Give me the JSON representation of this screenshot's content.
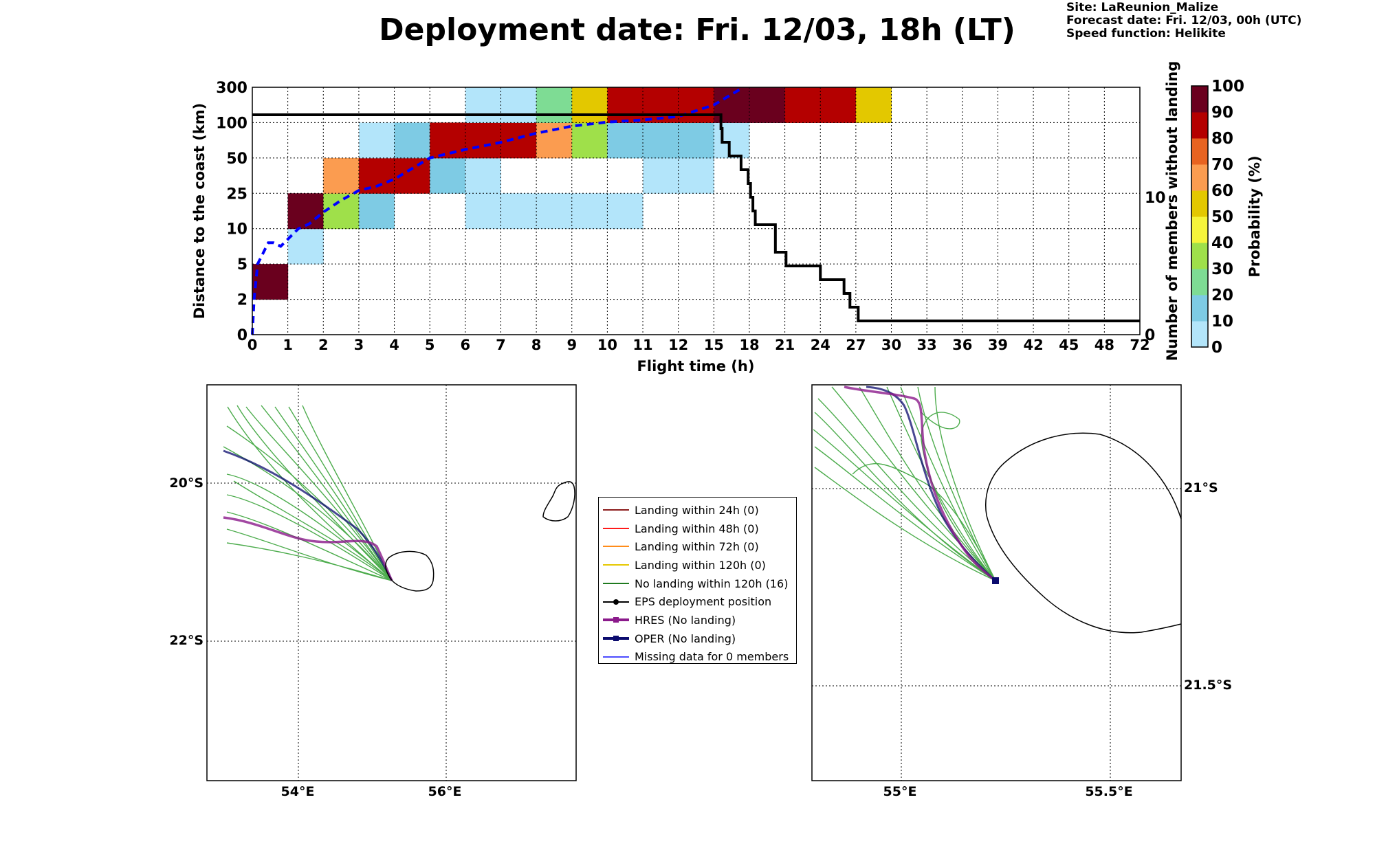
{
  "title": "Deployment date: Fri. 12/03, 18h (LT)",
  "info": {
    "site": "Site: LaReunion_Malize",
    "forecast": "Forecast date: Fri. 12/03, 00h (UTC)",
    "speed": "Speed function: Helikite"
  },
  "chart_data": [
    {
      "type": "heatmap",
      "xlabel": "Flight time (h)",
      "ylabel": "Distance to the coast (km)",
      "y2label": "Number of members without landing",
      "x_ticks": [
        "0",
        "1",
        "2",
        "3",
        "4",
        "5",
        "6",
        "7",
        "8",
        "9",
        "10",
        "11",
        "12",
        "15",
        "18",
        "21",
        "24",
        "27",
        "30",
        "33",
        "36",
        "39",
        "42",
        "45",
        "48",
        "72"
      ],
      "y_ticks": [
        "0",
        "2",
        "5",
        "10",
        "25",
        "50",
        "100",
        "300"
      ],
      "y2_ticks": [
        "0",
        "10"
      ],
      "y2lim": [
        0,
        18
      ],
      "colorbar": {
        "label": "Probability (%)",
        "ticks": [
          "0",
          "10",
          "20",
          "30",
          "40",
          "50",
          "60",
          "70",
          "80",
          "90",
          "100"
        ],
        "colors": [
          "#b3e5fa",
          "#7ecbe4",
          "#7edc94",
          "#9fe04a",
          "#f6f43a",
          "#e3c800",
          "#fb9c50",
          "#e86320",
          "#b40000",
          "#6a001e"
        ]
      },
      "cells": [
        {
          "x": "0-1",
          "y": "2-5",
          "prob_pct": 95
        },
        {
          "x": "1-2",
          "y": "5-10",
          "prob_pct": 5
        },
        {
          "x": "1-2",
          "y": "10-25",
          "prob_pct": 95
        },
        {
          "x": "2-3",
          "y": "10-25",
          "prob_pct": 35
        },
        {
          "x": "2-3",
          "y": "25-50",
          "prob_pct": 65
        },
        {
          "x": "3-4",
          "y": "10-25",
          "prob_pct": 15
        },
        {
          "x": "3-4",
          "y": "25-50",
          "prob_pct": 85
        },
        {
          "x": "3-4",
          "y": "50-100",
          "prob_pct": 5
        },
        {
          "x": "4-5",
          "y": "25-50",
          "prob_pct": 85
        },
        {
          "x": "4-5",
          "y": "50-100",
          "prob_pct": 15
        },
        {
          "x": "5-6",
          "y": "25-50",
          "prob_pct": 15
        },
        {
          "x": "5-6",
          "y": "50-100",
          "prob_pct": 85
        },
        {
          "x": "6-7",
          "y": "10-25",
          "prob_pct": 5
        },
        {
          "x": "6-7",
          "y": "25-50",
          "prob_pct": 5
        },
        {
          "x": "6-7",
          "y": "50-100",
          "prob_pct": 85
        },
        {
          "x": "6-7",
          "y": "100-300",
          "prob_pct": 5
        },
        {
          "x": "7-8",
          "y": "10-25",
          "prob_pct": 5
        },
        {
          "x": "7-8",
          "y": "50-100",
          "prob_pct": 85
        },
        {
          "x": "7-8",
          "y": "100-300",
          "prob_pct": 5
        },
        {
          "x": "8-9",
          "y": "10-25",
          "prob_pct": 5
        },
        {
          "x": "8-9",
          "y": "50-100",
          "prob_pct": 65
        },
        {
          "x": "8-9",
          "y": "100-300",
          "prob_pct": 25
        },
        {
          "x": "9-10",
          "y": "10-25",
          "prob_pct": 5
        },
        {
          "x": "9-10",
          "y": "50-100",
          "prob_pct": 35
        },
        {
          "x": "9-10",
          "y": "100-300",
          "prob_pct": 55
        },
        {
          "x": "10-11",
          "y": "10-25",
          "prob_pct": 5
        },
        {
          "x": "10-11",
          "y": "50-100",
          "prob_pct": 15
        },
        {
          "x": "10-11",
          "y": "100-300",
          "prob_pct": 85
        },
        {
          "x": "11-12",
          "y": "25-50",
          "prob_pct": 5
        },
        {
          "x": "11-12",
          "y": "50-100",
          "prob_pct": 15
        },
        {
          "x": "11-12",
          "y": "100-300",
          "prob_pct": 85
        },
        {
          "x": "12-15",
          "y": "25-50",
          "prob_pct": 5
        },
        {
          "x": "12-15",
          "y": "50-100",
          "prob_pct": 15
        },
        {
          "x": "12-15",
          "y": "100-300",
          "prob_pct": 85
        },
        {
          "x": "15-18",
          "y": "50-100",
          "prob_pct": 5
        },
        {
          "x": "15-18",
          "y": "100-300",
          "prob_pct": 95
        },
        {
          "x": "18-21",
          "y": "100-300",
          "prob_pct": 95
        },
        {
          "x": "21-24",
          "y": "100-300",
          "prob_pct": 85
        },
        {
          "x": "24-27",
          "y": "100-300",
          "prob_pct": 85
        },
        {
          "x": "27-30",
          "y": "100-300",
          "prob_pct": 55
        }
      ],
      "series": [
        {
          "type": "line",
          "style": "dashed",
          "color": "#0000ff",
          "axis": "left",
          "x_h": [
            0,
            0.05,
            0.15,
            0.3,
            0.45,
            0.6,
            0.8,
            1,
            1.3,
            1.6,
            2,
            2.5,
            3,
            3.5,
            4,
            5,
            6,
            7,
            8,
            9,
            10,
            11,
            12,
            15,
            17.5
          ],
          "y_km": [
            0,
            2,
            5,
            6.5,
            8,
            8,
            7.5,
            8.5,
            10,
            12,
            17,
            22,
            27,
            30,
            35,
            50,
            62,
            72,
            85,
            95,
            103,
            115,
            135,
            200,
            300
          ]
        },
        {
          "type": "step",
          "color": "#000000",
          "axis": "right",
          "x_h": [
            0,
            15.3,
            15.6,
            15.7,
            16.3,
            17.3,
            17.9,
            18.1,
            18.3,
            18.5,
            20.2,
            21.1,
            24.0,
            26.0,
            26.5,
            27.2,
            72
          ],
          "y_members": [
            16,
            16,
            15,
            14,
            13,
            12,
            11,
            10,
            9,
            8,
            6,
            5,
            4,
            3,
            2,
            1,
            1
          ]
        }
      ]
    }
  ],
  "maps": [
    {
      "lon_ticks": [
        "54°E",
        "56°E"
      ],
      "lat_ticks": [
        "20°S",
        "22°S"
      ]
    },
    {
      "lon_ticks": [
        "55°E",
        "55.5°E"
      ],
      "lat_ticks": [
        "21°S",
        "21.5°S"
      ]
    }
  ],
  "legend": [
    {
      "label": "Landing within 24h (0)",
      "color": "#8b1a1a",
      "marker": "none"
    },
    {
      "label": "Landing within 48h (0)",
      "color": "#ff1a1a",
      "marker": "none"
    },
    {
      "label": "Landing within 72h (0)",
      "color": "#ff8c1a",
      "marker": "none"
    },
    {
      "label": "Landing within 120h (0)",
      "color": "#e6c800",
      "marker": "none"
    },
    {
      "label": "No landing within 120h (16)",
      "color": "#1f7a1f",
      "marker": "none"
    },
    {
      "label": "EPS deployment position",
      "color": "#000000",
      "marker": "circle"
    },
    {
      "label": "HRES (No landing)",
      "color": "#8b1a8b",
      "marker": "square"
    },
    {
      "label": "OPER (No landing)",
      "color": "#0b0b6e",
      "marker": "square"
    },
    {
      "label": "Missing data for 0 members",
      "color": "#4b4bff",
      "marker": "none"
    }
  ]
}
